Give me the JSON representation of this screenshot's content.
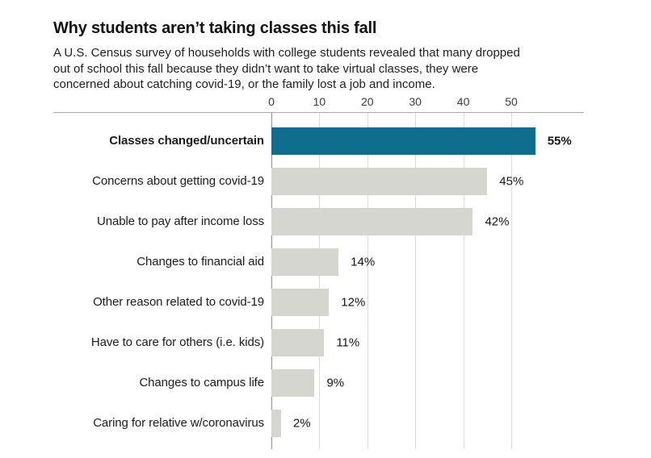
{
  "title": "Why students aren’t taking classes this fall",
  "subtitle_lines": [
    "A U.S. Census survey of households with college students revealed that many dropped",
    "out of school this fall because they didn’t want to take virtual classes, they were",
    "concerned about catching covid-19, or the family lost a job and income."
  ],
  "chart_data": {
    "type": "bar",
    "orientation": "horizontal",
    "categories": [
      "Classes changed/uncertain",
      "Concerns about getting covid-19",
      "Unable to pay after income loss",
      "Changes to financial aid",
      "Other reason related to covid-19",
      "Have to care for others (i.e. kids)",
      "Changes to campus life",
      "Caring for relative w/coronavirus"
    ],
    "values": [
      55,
      45,
      42,
      14,
      12,
      11,
      9,
      2
    ],
    "value_labels": [
      "55%",
      "45%",
      "42%",
      "14%",
      "12%",
      "11%",
      "9%",
      "2%"
    ],
    "highlight_index": 0,
    "axis_ticks": [
      0,
      10,
      20,
      30,
      40,
      50
    ],
    "xlim": [
      0,
      65
    ],
    "grid": true,
    "legend": "none",
    "colors": {
      "highlight_bar": "#0f6e8e",
      "default_bar": "#d6d6d1",
      "gridline": "#dddddd",
      "zero_line": "#8f8f8f",
      "axis_line": "#a9a9a9"
    }
  }
}
